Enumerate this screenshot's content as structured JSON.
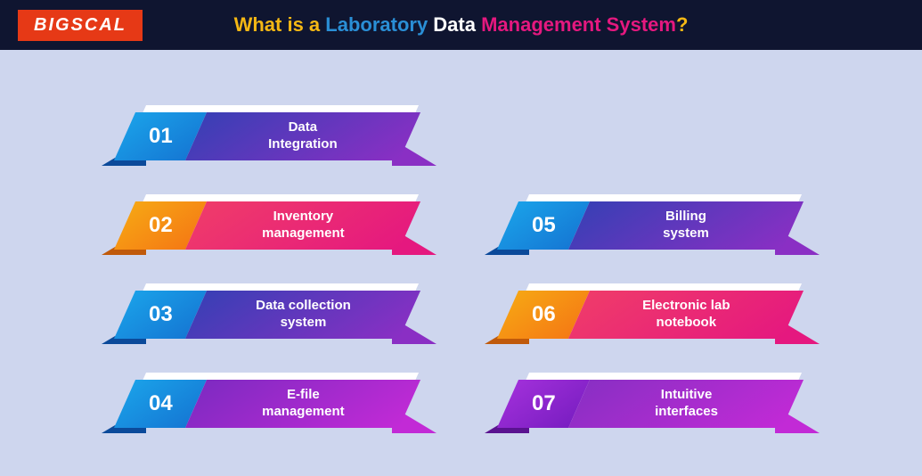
{
  "header": {
    "logo": "BIGSCAL",
    "title_parts": {
      "p1": "What is a ",
      "p2": "Laboratory ",
      "p3": "Data ",
      "p4": "Management System",
      "p5": "?"
    }
  },
  "infographic": {
    "type": "infographic",
    "background_color": "#ced6ee",
    "header_bg": "#0f1530",
    "logo_bg": "#e63916",
    "title_colors": [
      "#f5b814",
      "#2a8fd6",
      "#ffffff",
      "#e5187f",
      "#f5b814"
    ],
    "title_fontsize": 22,
    "ribbon_width": 320,
    "ribbon_height": 54,
    "skew_deg": -24,
    "num_fontsize": 24,
    "label_fontsize": 15,
    "left_column": [
      {
        "num": "01",
        "label": "Data\nIntegration",
        "num_gradient": [
          "#1aa0e8",
          "#1578d4"
        ],
        "label_gradient": [
          "#3a3fb5",
          "#8a2fc4"
        ],
        "wing_color": "#0b4a9a"
      },
      {
        "num": "02",
        "label": "Inventory\nmanagement",
        "num_gradient": [
          "#f6a514",
          "#f57a14"
        ],
        "label_gradient": [
          "#ef3b6a",
          "#e5187f"
        ],
        "wing_color": "#c05a0b"
      },
      {
        "num": "03",
        "label": "Data collection\nsystem",
        "num_gradient": [
          "#1aa0e8",
          "#1578d4"
        ],
        "label_gradient": [
          "#3a3fb5",
          "#8a2fc4"
        ],
        "wing_color": "#0b4a9a"
      },
      {
        "num": "04",
        "label": "E-file\nmanagement",
        "num_gradient": [
          "#1aa0e8",
          "#1578d4"
        ],
        "label_gradient": [
          "#7f2ac2",
          "#c22ad6"
        ],
        "wing_color": "#0b4a9a"
      }
    ],
    "right_column": [
      {
        "num": "05",
        "label": "Billing\nsystem",
        "num_gradient": [
          "#1aa0e8",
          "#1578d4"
        ],
        "label_gradient": [
          "#3a3fb5",
          "#8a2fc4"
        ],
        "wing_color": "#0b4a9a"
      },
      {
        "num": "06",
        "label": "Electronic lab\nnotebook",
        "num_gradient": [
          "#f6a514",
          "#f57a14"
        ],
        "label_gradient": [
          "#ef3b6a",
          "#e5187f"
        ],
        "wing_color": "#c05a0b"
      },
      {
        "num": "07",
        "label": "Intuitive\ninterfaces",
        "num_gradient": [
          "#a02fd9",
          "#7a1ec2"
        ],
        "label_gradient": [
          "#8a2fc4",
          "#c22ad6"
        ],
        "wing_color": "#5a1390"
      }
    ]
  }
}
